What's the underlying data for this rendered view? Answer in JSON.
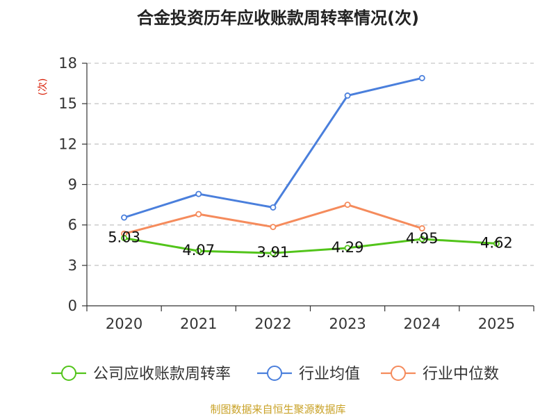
{
  "chart_data": {
    "type": "line",
    "title": "合金投资历年应收账款周转率情况(次)",
    "ylabel": "(次)",
    "xlabel": "",
    "categories": [
      "2020",
      "2021",
      "2022",
      "2023",
      "2024",
      "2025"
    ],
    "ylim": [
      0,
      18
    ],
    "yticks": [
      "0",
      "3",
      "6",
      "9",
      "12",
      "15",
      "18"
    ],
    "grid": true,
    "legend_position": "bottom",
    "series": [
      {
        "name": "公司应收账款周转率",
        "color": "#52c41a",
        "values": [
          5.03,
          4.07,
          3.91,
          4.29,
          4.95,
          4.62
        ],
        "labels": [
          "5.03",
          "4.07",
          "3.91",
          "4.29",
          "4.95",
          "4.62"
        ]
      },
      {
        "name": "行业均值",
        "color": "#4a7fdc",
        "values": [
          6.55,
          8.3,
          7.3,
          15.6,
          16.9,
          null
        ]
      },
      {
        "name": "行业中位数",
        "color": "#f58b5c",
        "values": [
          5.35,
          6.8,
          5.85,
          7.5,
          5.75,
          null
        ]
      }
    ]
  },
  "source": "制图数据来自恒生聚源数据库"
}
